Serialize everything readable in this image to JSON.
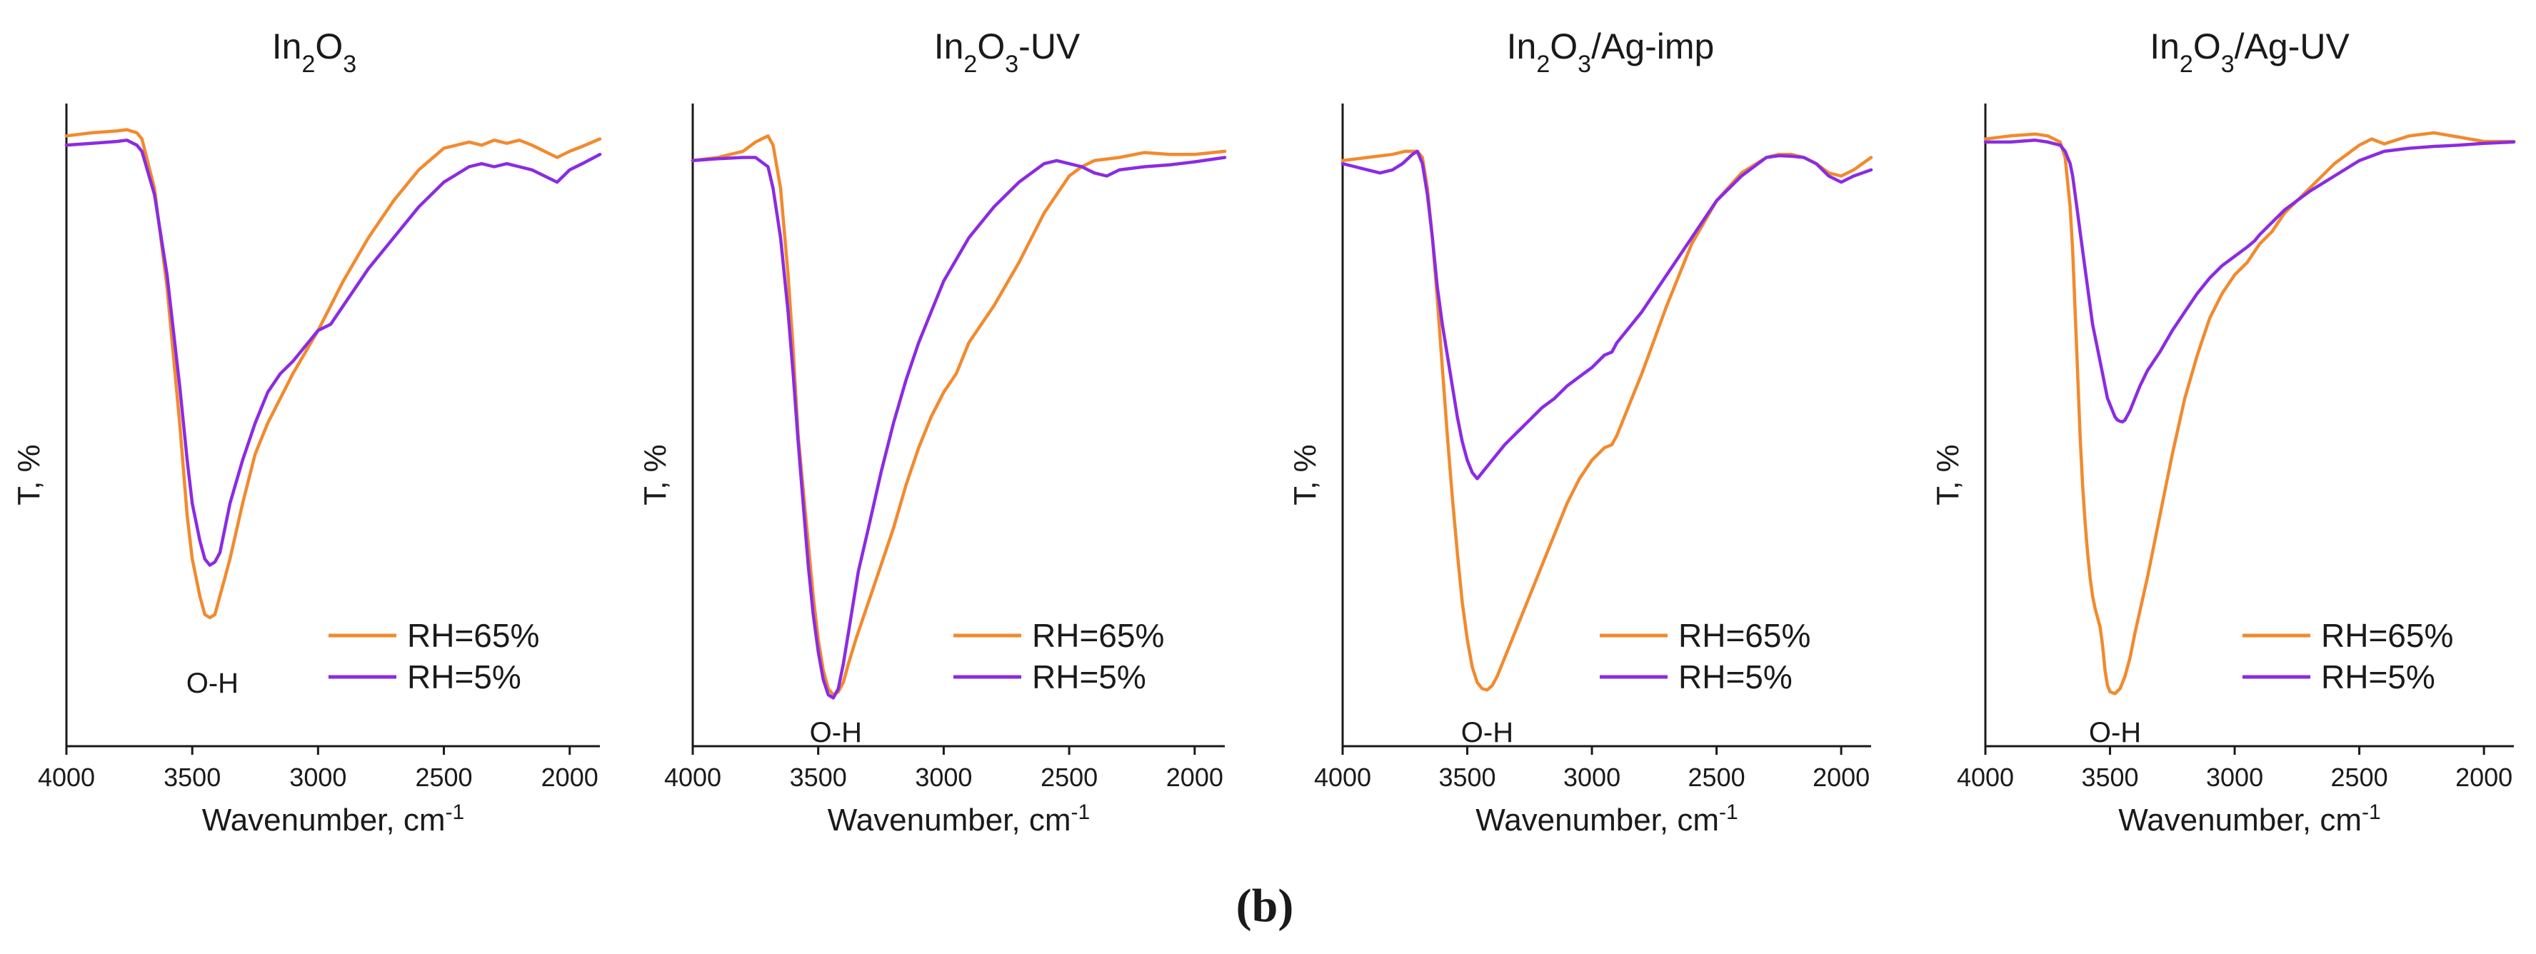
{
  "figure_caption": "(b)",
  "chart_data": [
    {
      "type": "line",
      "title": "In2O3",
      "title_parts": [
        {
          "t": "In",
          "s": false
        },
        {
          "t": "2",
          "s": true
        },
        {
          "t": "O",
          "s": false
        },
        {
          "t": "3",
          "s": true
        }
      ],
      "xlabel": "Wavenumber, cm",
      "xlabel_sup": "-1",
      "ylabel": "T, %",
      "xlim": [
        4000,
        1880
      ],
      "ylim": [
        0,
        100
      ],
      "xticks": [
        4000,
        3500,
        3000,
        2500,
        2000
      ],
      "grid": false,
      "legend_position": "bottom-right",
      "annotations": [
        {
          "text": "O-H",
          "x": 3420,
          "y": 11
        }
      ],
      "series": [
        {
          "name": "RH=65%",
          "color": "#f28a2e",
          "x": [
            4000,
            3900,
            3800,
            3760,
            3720,
            3700,
            3650,
            3600,
            3550,
            3520,
            3500,
            3470,
            3450,
            3430,
            3410,
            3390,
            3370,
            3350,
            3300,
            3250,
            3200,
            3150,
            3100,
            3000,
            2900,
            2800,
            2700,
            2600,
            2500,
            2400,
            2350,
            2300,
            2250,
            2200,
            2150,
            2100,
            2050,
            2000,
            1950,
            1880
          ],
          "y": [
            96.5,
            97,
            97.3,
            97.5,
            97,
            96,
            88,
            72,
            50,
            35,
            28,
            22,
            19,
            18.5,
            19,
            22,
            25,
            28,
            37,
            45,
            50,
            54,
            58,
            65,
            73,
            80,
            86,
            91,
            94.5,
            95.5,
            95,
            95.8,
            95.3,
            95.8,
            95,
            94,
            93,
            94,
            94.8,
            96
          ]
        },
        {
          "name": "RH=5%",
          "color": "#8b2be2",
          "x": [
            4000,
            3900,
            3800,
            3760,
            3720,
            3700,
            3650,
            3600,
            3550,
            3520,
            3500,
            3470,
            3450,
            3430,
            3410,
            3390,
            3370,
            3350,
            3300,
            3250,
            3200,
            3150,
            3100,
            3000,
            2950,
            2900,
            2800,
            2700,
            2600,
            2500,
            2400,
            2350,
            2300,
            2250,
            2200,
            2150,
            2100,
            2050,
            2000,
            1950,
            1880
          ],
          "y": [
            95,
            95.3,
            95.6,
            95.8,
            95,
            94,
            87,
            74,
            56,
            44,
            37,
            31,
            28,
            27,
            27.5,
            29,
            33,
            37,
            44,
            50,
            55,
            58,
            60,
            65,
            66,
            69,
            75,
            80,
            85,
            89,
            91.5,
            92,
            91.5,
            92,
            91.5,
            91,
            90,
            89,
            91,
            92,
            93.5
          ]
        }
      ]
    },
    {
      "type": "line",
      "title": "In2O3-UV",
      "title_parts": [
        {
          "t": "In",
          "s": false
        },
        {
          "t": "2",
          "s": true
        },
        {
          "t": "O",
          "s": false
        },
        {
          "t": "3",
          "s": true
        },
        {
          "t": "-UV",
          "s": false
        }
      ],
      "xlabel": "Wavenumber, cm",
      "xlabel_sup": "-1",
      "ylabel": "T, %",
      "xlim": [
        4000,
        1880
      ],
      "ylim": [
        0,
        100
      ],
      "xticks": [
        4000,
        3500,
        3000,
        2500,
        2000
      ],
      "grid": false,
      "legend_position": "bottom-right",
      "annotations": [
        {
          "text": "O-H",
          "x": 3430,
          "y": 3
        }
      ],
      "series": [
        {
          "name": "RH=65%",
          "color": "#f28a2e",
          "x": [
            4000,
            3900,
            3800,
            3750,
            3700,
            3680,
            3650,
            3620,
            3600,
            3580,
            3550,
            3520,
            3500,
            3480,
            3460,
            3440,
            3420,
            3400,
            3380,
            3350,
            3300,
            3250,
            3200,
            3150,
            3100,
            3050,
            3000,
            2950,
            2900,
            2850,
            2800,
            2700,
            2600,
            2500,
            2450,
            2400,
            2300,
            2200,
            2100,
            2000,
            1880
          ],
          "y": [
            92.5,
            93,
            94,
            95.5,
            96.5,
            95,
            88,
            74,
            62,
            48,
            35,
            22,
            15,
            10,
            7,
            6,
            6.5,
            8,
            11,
            15,
            21,
            27,
            33,
            40,
            46,
            51,
            55,
            58,
            63,
            66,
            69,
            76,
            84,
            90,
            91.5,
            92.5,
            93,
            93.8,
            93.5,
            93.5,
            94
          ]
        },
        {
          "name": "RH=5%",
          "color": "#8b2be2",
          "x": [
            4000,
            3900,
            3800,
            3750,
            3700,
            3680,
            3650,
            3620,
            3600,
            3580,
            3560,
            3540,
            3520,
            3500,
            3480,
            3460,
            3440,
            3420,
            3400,
            3380,
            3360,
            3340,
            3300,
            3250,
            3200,
            3150,
            3100,
            3050,
            3000,
            2900,
            2800,
            2700,
            2600,
            2550,
            2500,
            2450,
            2400,
            2350,
            2300,
            2200,
            2100,
            2000,
            1880
          ],
          "y": [
            92.5,
            92.8,
            93,
            93,
            91.5,
            88,
            80,
            68,
            58,
            47,
            37,
            27,
            19,
            13,
            8.5,
            6,
            5.5,
            7,
            11,
            16,
            21,
            26,
            33,
            42,
            50,
            57,
            63,
            68,
            73,
            80,
            85,
            89,
            92,
            92.5,
            92,
            91.5,
            90.5,
            90,
            91,
            91.5,
            91.8,
            92.3,
            93
          ]
        }
      ]
    },
    {
      "type": "line",
      "title": "In2O3/Ag-imp",
      "title_parts": [
        {
          "t": "In",
          "s": false
        },
        {
          "t": "2",
          "s": true
        },
        {
          "t": "O",
          "s": false
        },
        {
          "t": "3",
          "s": true
        },
        {
          "t": "/Ag-imp",
          "s": false
        }
      ],
      "xlabel": "Wavenumber, cm",
      "xlabel_sup": "-1",
      "ylabel": "T, %",
      "xlim": [
        4000,
        1880
      ],
      "ylim": [
        0,
        100
      ],
      "xticks": [
        4000,
        3500,
        3000,
        2500,
        2000
      ],
      "grid": false,
      "legend_position": "bottom-right",
      "annotations": [
        {
          "text": "O-H",
          "x": 3420,
          "y": 3
        }
      ],
      "series": [
        {
          "name": "RH=65%",
          "color": "#f28a2e",
          "x": [
            4000,
            3900,
            3800,
            3750,
            3700,
            3680,
            3660,
            3640,
            3620,
            3600,
            3580,
            3560,
            3540,
            3520,
            3500,
            3480,
            3460,
            3440,
            3420,
            3400,
            3380,
            3350,
            3300,
            3250,
            3200,
            3150,
            3100,
            3050,
            3000,
            2950,
            2920,
            2900,
            2800,
            2700,
            2600,
            2500,
            2400,
            2300,
            2250,
            2200,
            2150,
            2100,
            2050,
            2000,
            1950,
            1880
          ],
          "y": [
            92.5,
            93,
            93.5,
            94,
            94,
            93,
            88,
            80,
            70,
            59,
            48,
            38,
            29,
            21,
            15,
            10.5,
            8,
            7,
            6.8,
            7.5,
            9,
            12,
            17,
            22,
            27,
            32,
            37,
            41,
            44,
            46,
            46.5,
            48,
            58,
            69,
            79,
            86,
            90.5,
            93,
            93.5,
            93.5,
            93,
            92,
            90.5,
            90,
            91,
            93
          ]
        },
        {
          "name": "RH=5%",
          "color": "#8b2be2",
          "x": [
            4000,
            3950,
            3900,
            3850,
            3800,
            3760,
            3720,
            3700,
            3680,
            3660,
            3640,
            3620,
            3600,
            3580,
            3560,
            3540,
            3520,
            3500,
            3480,
            3460,
            3440,
            3420,
            3400,
            3380,
            3350,
            3300,
            3250,
            3200,
            3150,
            3100,
            3050,
            3000,
            2950,
            2920,
            2900,
            2800,
            2700,
            2600,
            2500,
            2400,
            2300,
            2250,
            2200,
            2150,
            2100,
            2050,
            2000,
            1950,
            1880
          ],
          "y": [
            92,
            91.5,
            91,
            90.5,
            91,
            92,
            93.5,
            94,
            92,
            87,
            80,
            72,
            66,
            61,
            56,
            51,
            47,
            44,
            42,
            41,
            42,
            43,
            44,
            45,
            46.5,
            48.5,
            50.5,
            52.5,
            54,
            56,
            57.5,
            59,
            61,
            61.5,
            63,
            68,
            74,
            80,
            86,
            90,
            93,
            93.3,
            93.2,
            93,
            92,
            90,
            89,
            90,
            91
          ]
        }
      ]
    },
    {
      "type": "line",
      "title": "In2O3/Ag-UV",
      "title_parts": [
        {
          "t": "In",
          "s": false
        },
        {
          "t": "2",
          "s": true
        },
        {
          "t": "O",
          "s": false
        },
        {
          "t": "3",
          "s": true
        },
        {
          "t": "/Ag-UV",
          "s": false
        }
      ],
      "xlabel": "Wavenumber, cm",
      "xlabel_sup": "-1",
      "ylabel": "T, %",
      "xlim": [
        4000,
        1880
      ],
      "ylim": [
        0,
        100
      ],
      "xticks": [
        4000,
        3500,
        3000,
        2500,
        2000
      ],
      "grid": false,
      "legend_position": "bottom-right",
      "annotations": [
        {
          "text": "O-H",
          "x": 3480,
          "y": 3
        }
      ],
      "series": [
        {
          "name": "RH=65%",
          "color": "#f28a2e",
          "x": [
            4000,
            3900,
            3800,
            3750,
            3700,
            3680,
            3660,
            3650,
            3640,
            3630,
            3620,
            3610,
            3600,
            3590,
            3580,
            3570,
            3560,
            3550,
            3540,
            3530,
            3520,
            3510,
            3500,
            3480,
            3460,
            3440,
            3420,
            3400,
            3350,
            3300,
            3250,
            3200,
            3150,
            3100,
            3050,
            3000,
            2950,
            2900,
            2850,
            2800,
            2700,
            2600,
            2500,
            2450,
            2400,
            2300,
            2200,
            2100,
            2000,
            1880
          ],
          "y": [
            96,
            96.5,
            96.8,
            96.5,
            95.5,
            93,
            85,
            78,
            68,
            58,
            48,
            40,
            34,
            29,
            25,
            22,
            20,
            18.5,
            17,
            14,
            10,
            7.5,
            6.5,
            6.2,
            7,
            9,
            12,
            16,
            25,
            35,
            45,
            54,
            61,
            67,
            71,
            74,
            76,
            79,
            81,
            84,
            88,
            92,
            95,
            96,
            95.2,
            96.5,
            97,
            96.3,
            95.6,
            95.6
          ]
        },
        {
          "name": "RH=5%",
          "color": "#8b2be2",
          "x": [
            4000,
            3900,
            3800,
            3750,
            3700,
            3680,
            3660,
            3650,
            3640,
            3630,
            3620,
            3610,
            3600,
            3590,
            3580,
            3570,
            3560,
            3550,
            3540,
            3530,
            3520,
            3510,
            3500,
            3490,
            3480,
            3470,
            3460,
            3450,
            3440,
            3420,
            3400,
            3380,
            3350,
            3300,
            3250,
            3200,
            3150,
            3100,
            3050,
            3000,
            2950,
            2920,
            2900,
            2850,
            2800,
            2700,
            2600,
            2500,
            2400,
            2300,
            2200,
            2100,
            2000,
            1880
          ],
          "y": [
            95.5,
            95.5,
            95.8,
            95.5,
            95,
            94,
            92,
            90,
            87,
            84,
            81,
            78,
            75,
            72,
            69,
            66,
            64,
            62,
            60,
            58,
            56,
            54,
            53,
            52,
            51,
            50.5,
            50.3,
            50.2,
            50.5,
            52,
            54,
            56,
            58.5,
            61.5,
            65,
            68,
            71,
            73.5,
            75.5,
            77,
            78.5,
            79.5,
            80.5,
            82.5,
            84.5,
            87.5,
            90,
            92.5,
            94,
            94.5,
            94.8,
            95,
            95.3,
            95.5
          ]
        }
      ]
    }
  ]
}
